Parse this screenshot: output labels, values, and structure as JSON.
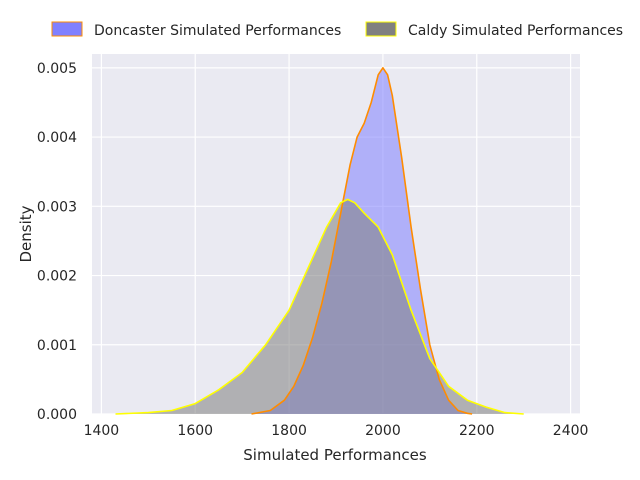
{
  "chart_data": {
    "type": "area",
    "xlabel": "Simulated Performances",
    "ylabel": "Density",
    "xlim": [
      1380,
      2420
    ],
    "ylim": [
      0,
      0.0052
    ],
    "x_ticks": [
      1400,
      1600,
      1800,
      2000,
      2200,
      2400
    ],
    "x_tick_labels": [
      "1400",
      "1600",
      "1800",
      "2000",
      "2200",
      "2400"
    ],
    "y_ticks": [
      0,
      0.001,
      0.002,
      0.003,
      0.004,
      0.005
    ],
    "y_tick_labels": [
      "0.000",
      "0.001",
      "0.002",
      "0.003",
      "0.004",
      "0.005"
    ],
    "grid": true,
    "legend_position": "top-center",
    "background": "#eaeaf2",
    "series": [
      {
        "name": "Doncaster Simulated Performances",
        "fill": "#8080ff",
        "edge": "#ff8c00",
        "points": [
          [
            1720,
            0
          ],
          [
            1760,
            5e-05
          ],
          [
            1790,
            0.0002
          ],
          [
            1810,
            0.0004
          ],
          [
            1830,
            0.0007
          ],
          [
            1850,
            0.0011
          ],
          [
            1870,
            0.0016
          ],
          [
            1890,
            0.0022
          ],
          [
            1910,
            0.0029
          ],
          [
            1930,
            0.0036
          ],
          [
            1945,
            0.004
          ],
          [
            1960,
            0.0042
          ],
          [
            1975,
            0.0045
          ],
          [
            1990,
            0.0049
          ],
          [
            2000,
            0.005
          ],
          [
            2010,
            0.0049
          ],
          [
            2020,
            0.0046
          ],
          [
            2040,
            0.0037
          ],
          [
            2060,
            0.0027
          ],
          [
            2080,
            0.0018
          ],
          [
            2100,
            0.001
          ],
          [
            2120,
            0.0005
          ],
          [
            2140,
            0.0002
          ],
          [
            2160,
            5e-05
          ],
          [
            2180,
            1e-05
          ],
          [
            2190,
            0
          ]
        ]
      },
      {
        "name": "Caldy Simulated Performances",
        "fill": "#808080",
        "edge": "#ffff00",
        "points": [
          [
            1430,
            0
          ],
          [
            1500,
            2e-05
          ],
          [
            1550,
            5e-05
          ],
          [
            1600,
            0.00015
          ],
          [
            1650,
            0.00035
          ],
          [
            1700,
            0.0006
          ],
          [
            1750,
            0.001
          ],
          [
            1800,
            0.0015
          ],
          [
            1840,
            0.0021
          ],
          [
            1880,
            0.0027
          ],
          [
            1910,
            0.00305
          ],
          [
            1925,
            0.0031
          ],
          [
            1940,
            0.00305
          ],
          [
            1960,
            0.0029
          ],
          [
            1990,
            0.0027
          ],
          [
            2020,
            0.0023
          ],
          [
            2060,
            0.0015
          ],
          [
            2100,
            0.0008
          ],
          [
            2140,
            0.0004
          ],
          [
            2180,
            0.0002
          ],
          [
            2220,
            0.0001
          ],
          [
            2260,
            2e-05
          ],
          [
            2300,
            0
          ]
        ]
      }
    ]
  }
}
